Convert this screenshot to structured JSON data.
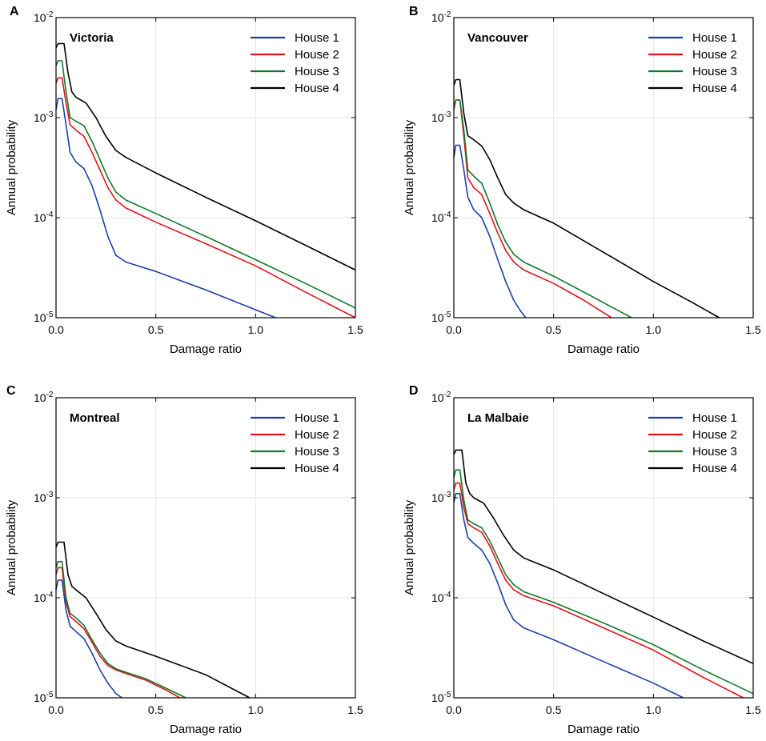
{
  "figure": {
    "xlabel": "Damage ratio",
    "ylabel": "Annual probability",
    "x_ticks": [
      "0.0",
      "0.5",
      "1.0",
      "1.5"
    ],
    "y_ticks": [
      {
        "base": "10",
        "exp": "-2"
      },
      {
        "base": "10",
        "exp": "-3"
      },
      {
        "base": "10",
        "exp": "-4"
      },
      {
        "base": "10",
        "exp": "-5"
      }
    ]
  },
  "colors": {
    "House 1": "#1f3fa8",
    "House 2": "#e3141b",
    "House 3": "#127a2a",
    "House 4": "#000000"
  },
  "chart_data": [
    {
      "panel": "A",
      "title": "Victoria",
      "type": "line",
      "xscale": "linear",
      "yscale": "log",
      "xlim": [
        0,
        1.5
      ],
      "ylim": [
        1e-05,
        0.01
      ],
      "legend": "top-right",
      "grid": true,
      "series": [
        {
          "name": "House 1",
          "x": [
            0,
            0.01,
            0.03,
            0.05,
            0.07,
            0.1,
            0.14,
            0.18,
            0.22,
            0.26,
            0.3,
            0.35,
            0.5,
            0.75,
            1.0,
            1.1
          ],
          "y": [
            0.0012,
            0.00155,
            0.00155,
            0.00085,
            0.00045,
            0.00036,
            0.00031,
            0.00021,
            0.00012,
            6.5e-05,
            4.2e-05,
            3.6e-05,
            2.9e-05,
            1.9e-05,
            1.2e-05,
            1e-05
          ]
        },
        {
          "name": "House 2",
          "x": [
            0,
            0.01,
            0.03,
            0.05,
            0.07,
            0.1,
            0.14,
            0.18,
            0.22,
            0.26,
            0.3,
            0.35,
            0.5,
            0.75,
            1.0,
            1.25,
            1.5
          ],
          "y": [
            0.0022,
            0.0025,
            0.0025,
            0.0014,
            0.00085,
            0.00075,
            0.00065,
            0.00045,
            0.0003,
            0.0002,
            0.00015,
            0.000125,
            9e-05,
            5.5e-05,
            3.3e-05,
            1.8e-05,
            1e-05
          ]
        },
        {
          "name": "House 3",
          "x": [
            0,
            0.01,
            0.03,
            0.05,
            0.07,
            0.1,
            0.14,
            0.18,
            0.22,
            0.26,
            0.3,
            0.35,
            0.5,
            0.75,
            1.0,
            1.25,
            1.5
          ],
          "y": [
            0.0033,
            0.0037,
            0.0037,
            0.0018,
            0.001,
            0.00092,
            0.00083,
            0.00058,
            0.00038,
            0.00025,
            0.00018,
            0.00015,
            0.00011,
            6.5e-05,
            3.8e-05,
            2.2e-05,
            1.25e-05
          ]
        },
        {
          "name": "House 4",
          "x": [
            0,
            0.01,
            0.04,
            0.06,
            0.08,
            0.1,
            0.15,
            0.2,
            0.25,
            0.3,
            0.35,
            0.5,
            0.75,
            1.0,
            1.25,
            1.5
          ],
          "y": [
            0.005,
            0.0055,
            0.0055,
            0.0028,
            0.0018,
            0.0016,
            0.0014,
            0.001,
            0.00065,
            0.00047,
            0.0004,
            0.00028,
            0.00016,
            9.3e-05,
            5.3e-05,
            3e-05
          ]
        }
      ]
    },
    {
      "panel": "B",
      "title": "Vancouver",
      "type": "line",
      "xscale": "linear",
      "yscale": "log",
      "xlim": [
        0,
        1.5
      ],
      "ylim": [
        1e-05,
        0.01
      ],
      "legend": "top-right",
      "grid": true,
      "series": [
        {
          "name": "House 1",
          "x": [
            0,
            0.01,
            0.03,
            0.05,
            0.07,
            0.1,
            0.14,
            0.18,
            0.22,
            0.26,
            0.3,
            0.33,
            0.36
          ],
          "y": [
            0.0004,
            0.00053,
            0.00053,
            0.0003,
            0.00016,
            0.00012,
            0.0001,
            6.5e-05,
            3.8e-05,
            2.3e-05,
            1.5e-05,
            1.2e-05,
            1e-05
          ]
        },
        {
          "name": "House 2",
          "x": [
            0,
            0.01,
            0.03,
            0.05,
            0.07,
            0.1,
            0.14,
            0.18,
            0.22,
            0.26,
            0.3,
            0.35,
            0.5,
            0.65,
            0.79
          ],
          "y": [
            0.0012,
            0.0015,
            0.0015,
            0.00065,
            0.00025,
            0.0002,
            0.00017,
            0.00011,
            7e-05,
            4.7e-05,
            3.6e-05,
            3e-05,
            2.2e-05,
            1.5e-05,
            1e-05
          ]
        },
        {
          "name": "House 3",
          "x": [
            0,
            0.01,
            0.03,
            0.05,
            0.07,
            0.1,
            0.14,
            0.18,
            0.22,
            0.26,
            0.3,
            0.35,
            0.5,
            0.7,
            0.89
          ],
          "y": [
            0.0013,
            0.0015,
            0.0015,
            0.00075,
            0.0003,
            0.00026,
            0.00022,
            0.00014,
            8.5e-05,
            5.7e-05,
            4.3e-05,
            3.6e-05,
            2.6e-05,
            1.6e-05,
            1e-05
          ]
        },
        {
          "name": "House 4",
          "x": [
            0,
            0.01,
            0.03,
            0.05,
            0.07,
            0.1,
            0.14,
            0.18,
            0.22,
            0.26,
            0.3,
            0.35,
            0.5,
            0.75,
            1.0,
            1.2,
            1.33
          ],
          "y": [
            0.0021,
            0.0024,
            0.0024,
            0.0011,
            0.00066,
            0.0006,
            0.00052,
            0.00038,
            0.00025,
            0.00017,
            0.00014,
            0.00012,
            8.8e-05,
            4.5e-05,
            2.3e-05,
            1.4e-05,
            1e-05
          ]
        }
      ]
    },
    {
      "panel": "C",
      "title": "Montreal",
      "type": "line",
      "xscale": "linear",
      "yscale": "log",
      "xlim": [
        0,
        1.5
      ],
      "ylim": [
        1e-05,
        0.01
      ],
      "legend": "top-right",
      "grid": true,
      "series": [
        {
          "name": "House 1",
          "x": [
            0,
            0.01,
            0.03,
            0.05,
            0.07,
            0.1,
            0.14,
            0.18,
            0.22,
            0.26,
            0.3,
            0.33
          ],
          "y": [
            0.00012,
            0.00015,
            0.00015,
            7.5e-05,
            5.2e-05,
            4.6e-05,
            3.9e-05,
            2.8e-05,
            1.9e-05,
            1.4e-05,
            1.1e-05,
            1e-05
          ]
        },
        {
          "name": "House 2",
          "x": [
            0,
            0.01,
            0.03,
            0.05,
            0.07,
            0.1,
            0.14,
            0.18,
            0.22,
            0.26,
            0.3,
            0.35,
            0.45,
            0.55,
            0.62
          ],
          "y": [
            0.00017,
            0.0002,
            0.0002,
            9e-05,
            6.5e-05,
            5.8e-05,
            4.9e-05,
            3.6e-05,
            2.6e-05,
            2.1e-05,
            1.9e-05,
            1.75e-05,
            1.5e-05,
            1.2e-05,
            1e-05
          ]
        },
        {
          "name": "House 3",
          "x": [
            0,
            0.01,
            0.03,
            0.05,
            0.07,
            0.1,
            0.14,
            0.18,
            0.22,
            0.26,
            0.3,
            0.35,
            0.45,
            0.55,
            0.65
          ],
          "y": [
            0.0002,
            0.00023,
            0.00023,
            0.0001,
            7e-05,
            6.3e-05,
            5.3e-05,
            3.8e-05,
            2.8e-05,
            2.2e-05,
            1.95e-05,
            1.8e-05,
            1.55e-05,
            1.25e-05,
            1e-05
          ]
        },
        {
          "name": "House 4",
          "x": [
            0,
            0.01,
            0.04,
            0.06,
            0.08,
            0.1,
            0.15,
            0.2,
            0.25,
            0.3,
            0.35,
            0.5,
            0.75,
            0.97
          ],
          "y": [
            0.00032,
            0.00036,
            0.00036,
            0.00017,
            0.00013,
            0.00012,
            0.0001,
            7e-05,
            4.8e-05,
            3.7e-05,
            3.3e-05,
            2.6e-05,
            1.7e-05,
            1e-05
          ]
        }
      ]
    },
    {
      "panel": "D",
      "title": "La Malbaie",
      "type": "line",
      "xscale": "linear",
      "yscale": "log",
      "xlim": [
        0,
        1.5
      ],
      "ylim": [
        1e-05,
        0.01
      ],
      "legend": "top-right",
      "grid": true,
      "series": [
        {
          "name": "House 1",
          "x": [
            0,
            0.01,
            0.03,
            0.05,
            0.07,
            0.1,
            0.14,
            0.18,
            0.22,
            0.26,
            0.3,
            0.35,
            0.5,
            0.75,
            1.0,
            1.15
          ],
          "y": [
            0.0009,
            0.0011,
            0.0011,
            0.0006,
            0.0004,
            0.00035,
            0.0003,
            0.00022,
            0.00014,
            8.5e-05,
            6e-05,
            5e-05,
            3.8e-05,
            2.3e-05,
            1.4e-05,
            1e-05
          ]
        },
        {
          "name": "House 2",
          "x": [
            0,
            0.01,
            0.03,
            0.05,
            0.07,
            0.1,
            0.14,
            0.18,
            0.22,
            0.26,
            0.3,
            0.35,
            0.5,
            0.75,
            1.0,
            1.25,
            1.45
          ],
          "y": [
            0.0012,
            0.0014,
            0.0014,
            0.0008,
            0.00055,
            0.0005,
            0.00045,
            0.00033,
            0.00022,
            0.00015,
            0.00012,
            0.000105,
            8.3e-05,
            5e-05,
            3e-05,
            1.6e-05,
            1e-05
          ]
        },
        {
          "name": "House 3",
          "x": [
            0,
            0.01,
            0.03,
            0.05,
            0.07,
            0.1,
            0.14,
            0.18,
            0.22,
            0.26,
            0.3,
            0.35,
            0.5,
            0.75,
            1.0,
            1.25,
            1.5
          ],
          "y": [
            0.0016,
            0.0019,
            0.0019,
            0.00095,
            0.0006,
            0.00055,
            0.0005,
            0.00037,
            0.00025,
            0.00017,
            0.000135,
            0.000115,
            9e-05,
            5.6e-05,
            3.4e-05,
            1.9e-05,
            1.1e-05
          ]
        },
        {
          "name": "House 4",
          "x": [
            0,
            0.01,
            0.04,
            0.06,
            0.08,
            0.1,
            0.15,
            0.2,
            0.25,
            0.3,
            0.35,
            0.5,
            0.75,
            1.0,
            1.25,
            1.5
          ],
          "y": [
            0.0027,
            0.003,
            0.003,
            0.0014,
            0.0011,
            0.001,
            0.00088,
            0.00062,
            0.00042,
            0.0003,
            0.00025,
            0.00019,
            0.00011,
            6.4e-05,
            3.7e-05,
            2.2e-05
          ]
        }
      ]
    }
  ]
}
